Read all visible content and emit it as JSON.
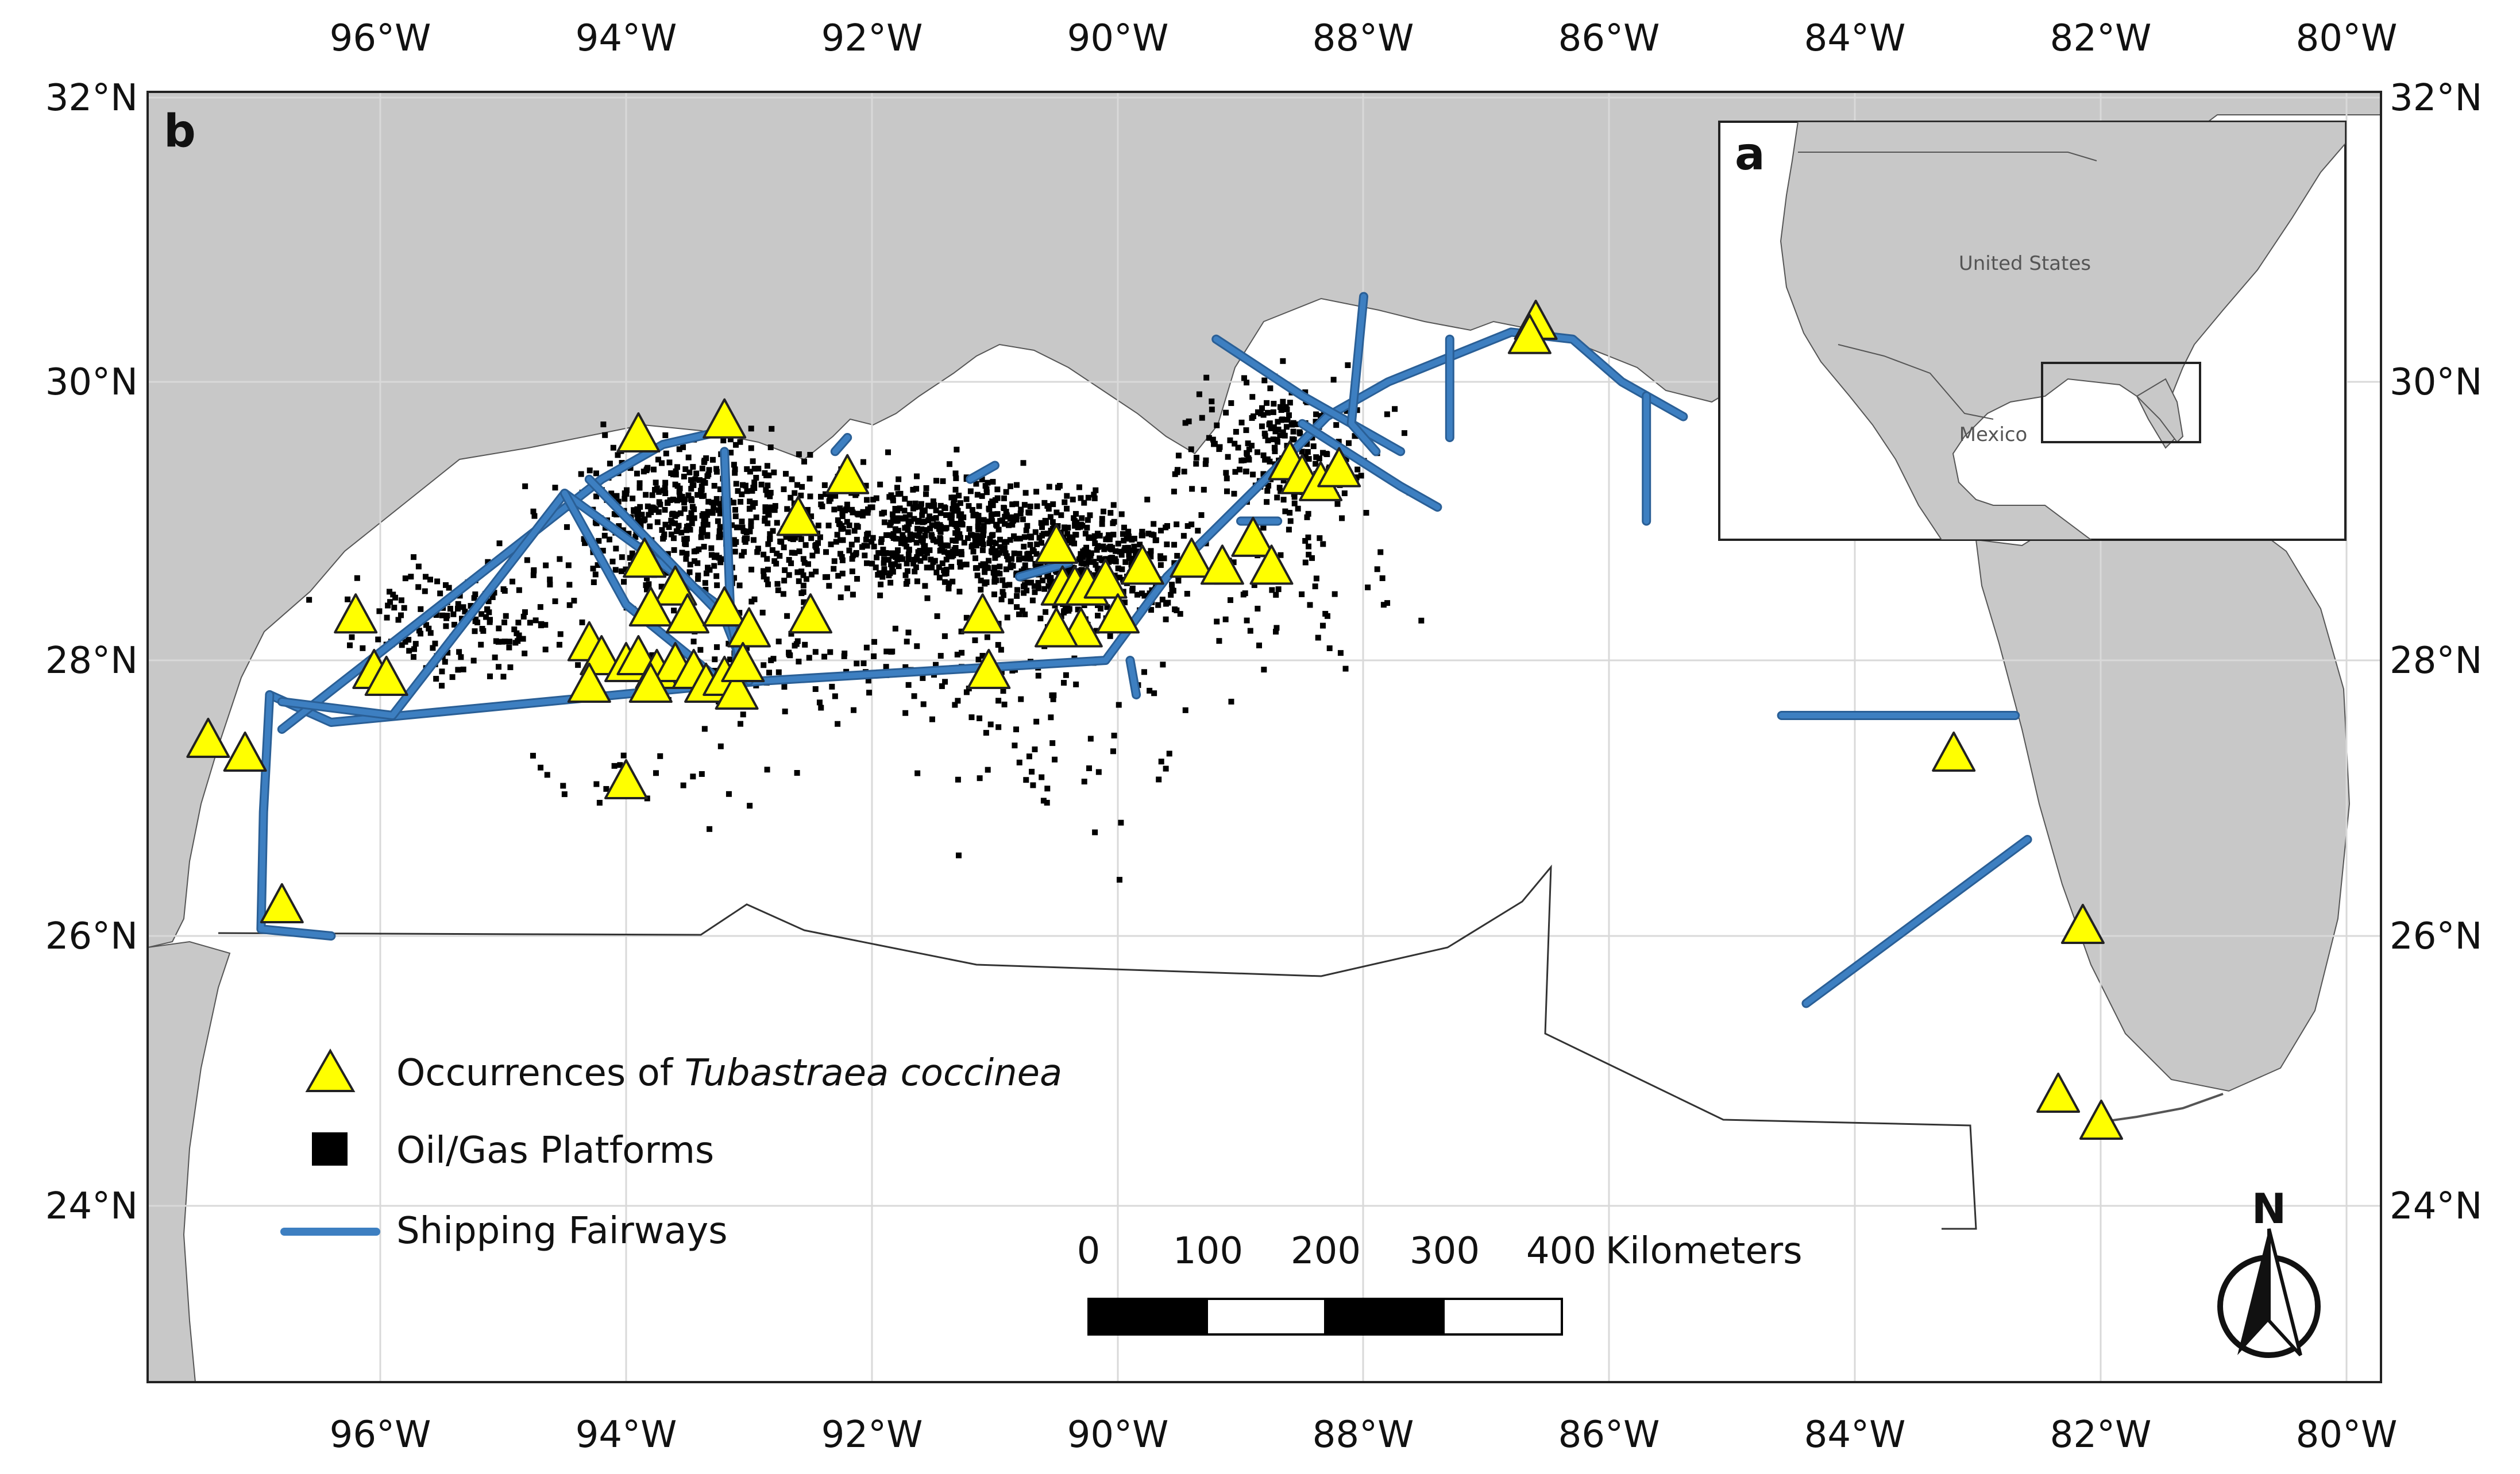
{
  "panel_main": "b",
  "panel_inset": "a",
  "inset_labels": {
    "country1": "United States",
    "country2": "Mexico"
  },
  "axes": {
    "lon_labels": [
      "96°W",
      "94°W",
      "92°W",
      "90°W",
      "88°W",
      "86°W",
      "84°W",
      "82°W",
      "80°W"
    ],
    "lat_labels": [
      "32°N",
      "30°N",
      "28°N",
      "26°N",
      "24°N"
    ]
  },
  "legend": {
    "occ_prefix": "Occurrences of ",
    "occ_species": "Tubastraea coccinea",
    "platforms": "Oil/Gas Platforms",
    "fairways": "Shipping Fairways"
  },
  "scale_bar": {
    "ticks": [
      "0",
      "100",
      "200",
      "300",
      "400"
    ],
    "unit": "Kilometers"
  },
  "north_arrow": "N",
  "colors": {
    "land": "#c8c8c8",
    "water": "#ffffff",
    "fairway": "#3d7fc1",
    "occurrence": "#ffff00",
    "platform": "#000000",
    "grid": "#d9d9d9"
  },
  "map_data": {
    "extent_lon": [
      -98,
      -79.7
    ],
    "extent_lat": [
      22.7,
      32
    ],
    "occurrences": [
      [
        -97.4,
        27.4
      ],
      [
        -97.1,
        27.3
      ],
      [
        -96.8,
        26.2
      ],
      [
        -96.2,
        28.3
      ],
      [
        -96.05,
        27.9
      ],
      [
        -95.95,
        27.85
      ],
      [
        -94.0,
        27.1
      ],
      [
        -93.9,
        29.6
      ],
      [
        -93.2,
        29.7
      ],
      [
        -93.85,
        28.7
      ],
      [
        -93.6,
        28.5
      ],
      [
        -93.8,
        28.35
      ],
      [
        -93.5,
        28.3
      ],
      [
        -93.2,
        28.35
      ],
      [
        -93.0,
        28.2
      ],
      [
        -94.3,
        28.1
      ],
      [
        -94.2,
        28.0
      ],
      [
        -94.0,
        27.95
      ],
      [
        -93.9,
        28.0
      ],
      [
        -93.75,
        27.9
      ],
      [
        -93.6,
        27.95
      ],
      [
        -93.45,
        27.9
      ],
      [
        -93.35,
        27.8
      ],
      [
        -93.2,
        27.85
      ],
      [
        -93.1,
        27.75
      ],
      [
        -93.05,
        27.95
      ],
      [
        -94.3,
        27.8
      ],
      [
        -93.8,
        27.8
      ],
      [
        -92.6,
        29.0
      ],
      [
        -92.2,
        29.3
      ],
      [
        -92.5,
        28.3
      ],
      [
        -91.1,
        28.3
      ],
      [
        -91.05,
        27.9
      ],
      [
        -90.5,
        28.8
      ],
      [
        -90.45,
        28.5
      ],
      [
        -90.35,
        28.5
      ],
      [
        -90.25,
        28.5
      ],
      [
        -90.1,
        28.55
      ],
      [
        -89.8,
        28.65
      ],
      [
        -90.0,
        28.3
      ],
      [
        -90.3,
        28.2
      ],
      [
        -90.5,
        28.2
      ],
      [
        -89.4,
        28.7
      ],
      [
        -89.15,
        28.65
      ],
      [
        -88.9,
        28.85
      ],
      [
        -88.75,
        28.65
      ],
      [
        -88.6,
        29.4
      ],
      [
        -88.5,
        29.3
      ],
      [
        -88.35,
        29.25
      ],
      [
        -88.2,
        29.35
      ],
      [
        -86.6,
        30.4
      ],
      [
        -86.65,
        30.3
      ],
      [
        -83.2,
        27.3
      ],
      [
        -82.15,
        26.05
      ],
      [
        -82.35,
        24.8
      ],
      [
        -82.0,
        24.6
      ]
    ],
    "fairways": [
      [
        [
          -96.9,
          27.75
        ],
        [
          -96.4,
          27.55
        ],
        [
          -92.9,
          27.85
        ],
        [
          -90.1,
          28.0
        ],
        [
          -89.6,
          28.6
        ],
        [
          -88.8,
          29.3
        ],
        [
          -88.3,
          29.75
        ],
        [
          -87.8,
          30.0
        ],
        [
          -86.8,
          30.35
        ],
        [
          -86.3,
          30.3
        ],
        [
          -85.9,
          30.0
        ],
        [
          -85.4,
          29.75
        ]
      ],
      [
        [
          -96.9,
          27.75
        ],
        [
          -96.95,
          26.9
        ],
        [
          -96.97,
          26.05
        ],
        [
          -96.4,
          26.0
        ]
      ],
      [
        [
          -96.8,
          27.5
        ],
        [
          -94.2,
          29.3
        ],
        [
          -93.7,
          29.55
        ],
        [
          -93.2,
          29.65
        ]
      ],
      [
        [
          -96.8,
          27.7
        ],
        [
          -95.9,
          27.6
        ],
        [
          -94.5,
          29.2
        ],
        [
          -93.1,
          28.3
        ],
        [
          -93.1,
          27.9
        ]
      ],
      [
        [
          -94.5,
          29.2
        ],
        [
          -94.0,
          28.4
        ],
        [
          -93.3,
          27.9
        ]
      ],
      [
        [
          -94.3,
          29.3
        ],
        [
          -93.2,
          28.3
        ],
        [
          -93.0,
          27.85
        ]
      ],
      [
        [
          -93.2,
          29.5
        ],
        [
          -93.15,
          28.3
        ],
        [
          -93.05,
          27.9
        ]
      ],
      [
        [
          -92.3,
          29.5
        ],
        [
          -92.2,
          29.6
        ]
      ],
      [
        [
          -91.2,
          29.3
        ],
        [
          -91.0,
          29.4
        ]
      ],
      [
        [
          -90.8,
          28.6
        ],
        [
          -90.4,
          28.7
        ]
      ],
      [
        [
          -89.9,
          28.0
        ],
        [
          -89.85,
          27.75
        ]
      ],
      [
        [
          -89.0,
          29.0
        ],
        [
          -88.7,
          29.0
        ]
      ],
      [
        [
          -88.5,
          29.7
        ],
        [
          -87.7,
          29.25
        ],
        [
          -87.4,
          29.1
        ]
      ],
      [
        [
          -89.2,
          30.3
        ],
        [
          -88.5,
          29.9
        ],
        [
          -87.7,
          29.5
        ]
      ],
      [
        [
          -88.0,
          30.6
        ],
        [
          -88.1,
          29.7
        ],
        [
          -87.9,
          29.5
        ]
      ],
      [
        [
          -87.3,
          30.3
        ],
        [
          -87.3,
          29.6
        ]
      ],
      [
        [
          -85.7,
          29.9
        ],
        [
          -85.7,
          29.0
        ]
      ],
      [
        [
          -84.6,
          27.6
        ],
        [
          -82.7,
          27.6
        ]
      ],
      [
        [
          -84.4,
          25.5
        ],
        [
          -82.6,
          26.7
        ]
      ]
    ]
  }
}
